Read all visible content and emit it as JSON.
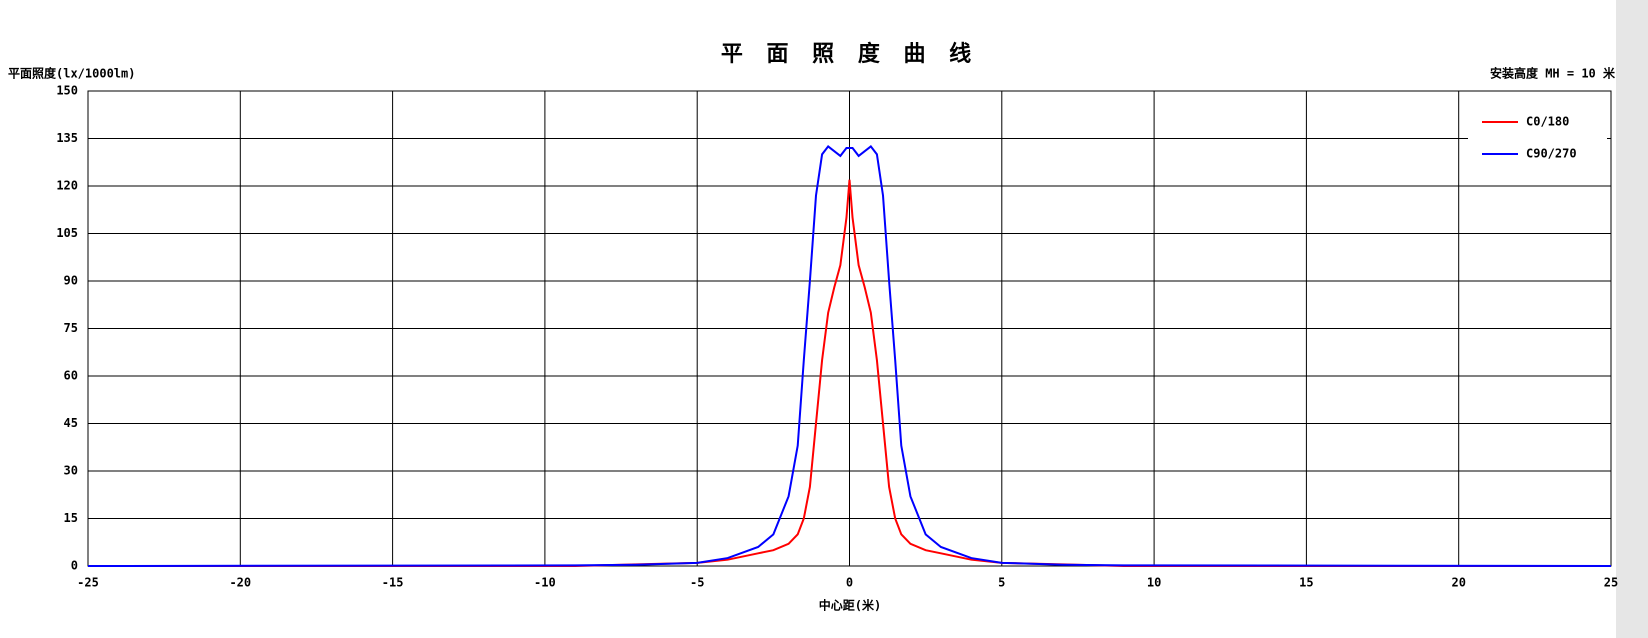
{
  "chart_data": {
    "type": "line",
    "title": "平 面 照 度 曲 线",
    "y_label": "平面照度(lx/1000lm)",
    "annotation": "安装高度 MH = 10 米",
    "x_label": "中心距(米)",
    "x": [
      -25,
      -9,
      -7,
      -5,
      -4,
      -3,
      -2.5,
      -2,
      -1.7,
      -1.5,
      -1.3,
      -1.1,
      -0.9,
      -0.7,
      -0.5,
      -0.3,
      -0.1,
      0,
      0.1,
      0.3,
      0.5,
      0.7,
      0.9,
      1.1,
      1.3,
      1.5,
      1.7,
      2,
      2.5,
      3,
      4,
      5,
      7,
      9,
      25
    ],
    "series": [
      {
        "name": "C0/180",
        "color": "#ff0000",
        "values": [
          0,
          0,
          0.5,
          1,
          2,
          4,
          5,
          7,
          10,
          15,
          25,
          45,
          65,
          80,
          88,
          95,
          110,
          122,
          110,
          95,
          88,
          80,
          65,
          45,
          25,
          15,
          10,
          7,
          5,
          4,
          2,
          1,
          0.5,
          0,
          0
        ]
      },
      {
        "name": "C90/270",
        "color": "#0000ff",
        "values": [
          0,
          0.2,
          0.4,
          1,
          2.5,
          6,
          10,
          22,
          38,
          65,
          90,
          117,
          130,
          132.5,
          131,
          129.5,
          132,
          132,
          132,
          129.5,
          131,
          132.5,
          130,
          117,
          90,
          65,
          38,
          22,
          10,
          6,
          2.5,
          1,
          0.4,
          0.2,
          0
        ]
      }
    ],
    "xlim": [
      -25,
      25
    ],
    "xticks": [
      -25,
      -20,
      -15,
      -10,
      -5,
      0,
      5,
      10,
      15,
      20,
      25
    ],
    "ylim": [
      0,
      150
    ],
    "yticks": [
      0,
      15,
      30,
      45,
      60,
      75,
      90,
      105,
      120,
      135,
      150
    ],
    "grid": true,
    "legend": "upper right"
  }
}
